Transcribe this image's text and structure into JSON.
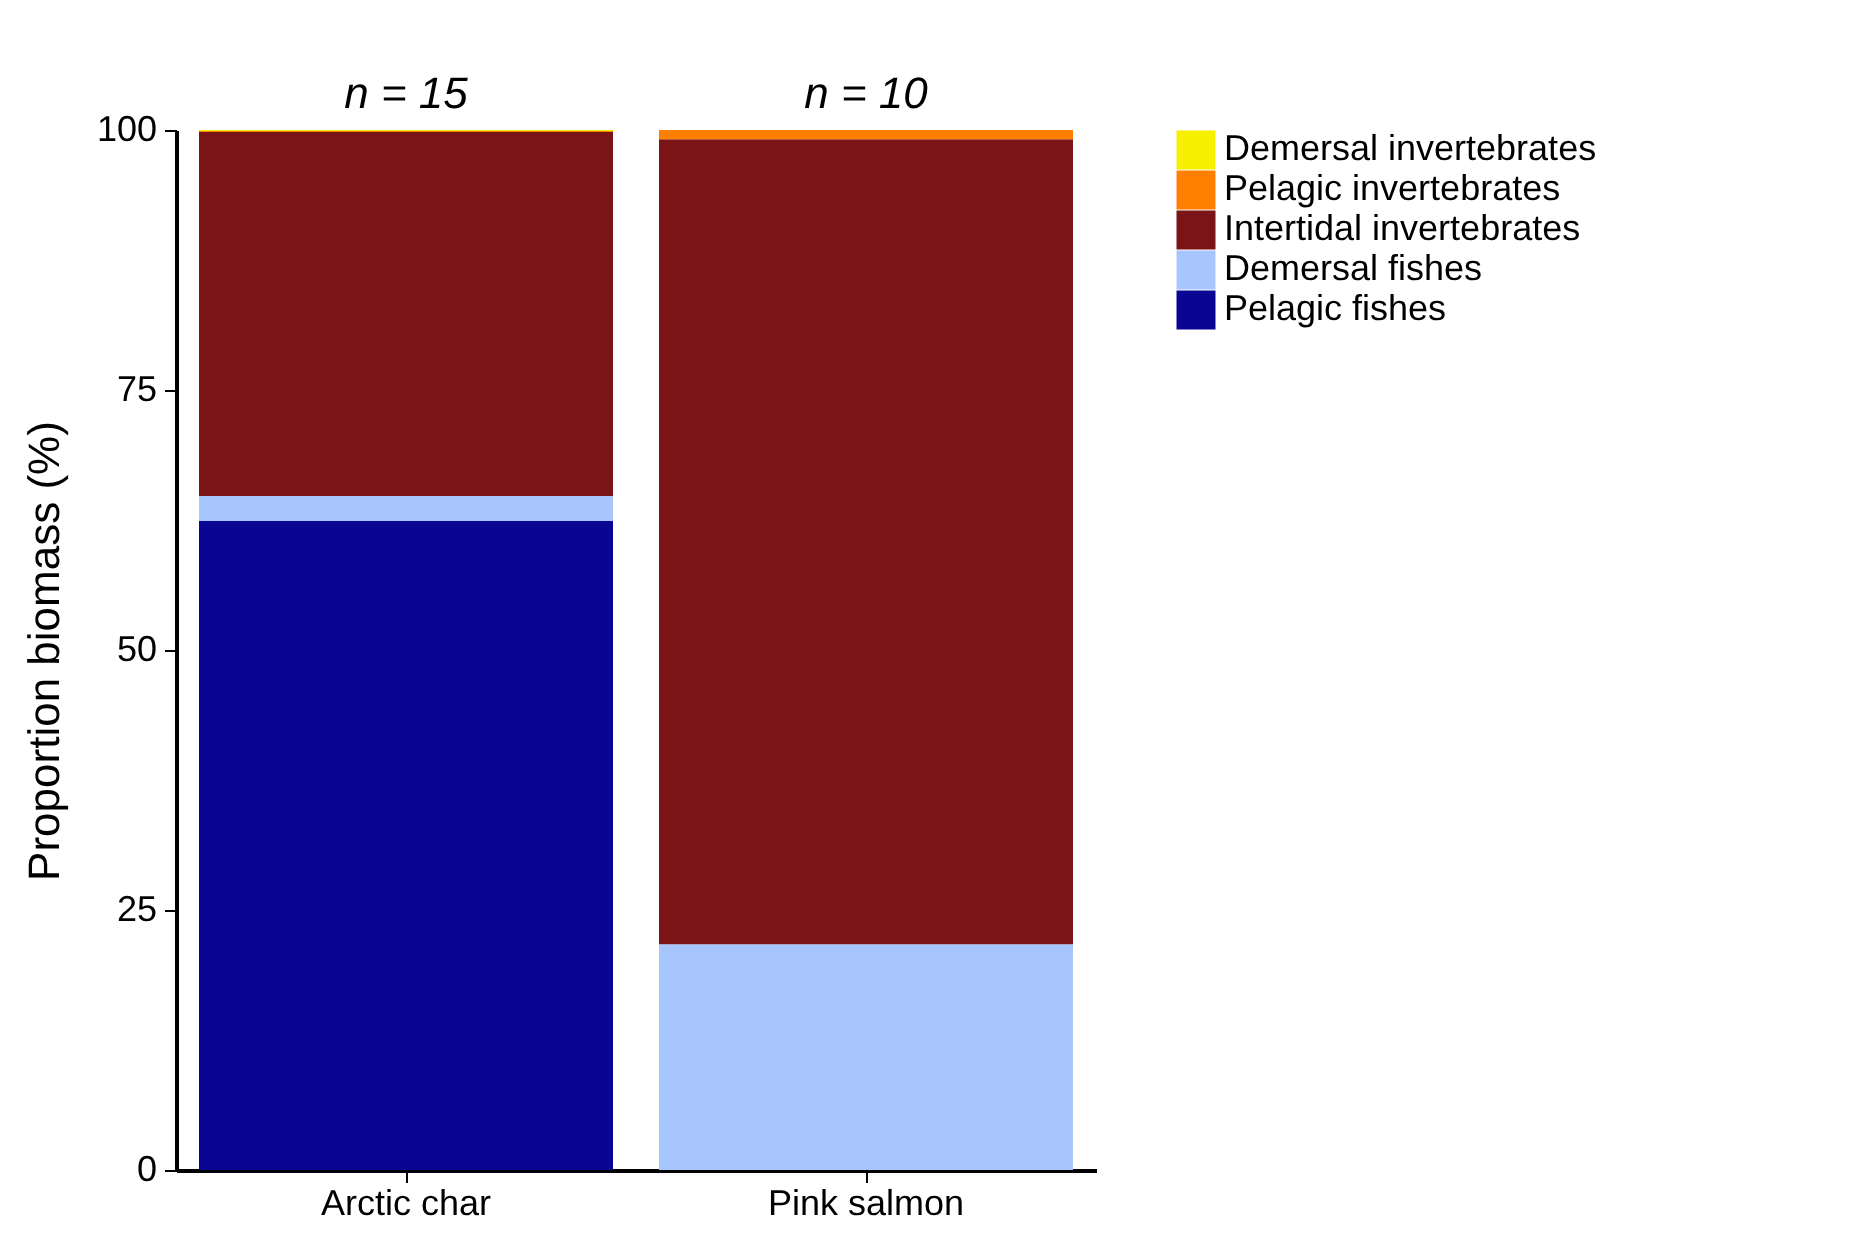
{
  "chart_data": {
    "type": "bar",
    "stacked": true,
    "ylabel": "Proportion biomass (%)",
    "categories": [
      "Arctic char",
      "Pink salmon"
    ],
    "series": [
      {
        "name": "Pelagic fishes",
        "color": "#0a0693",
        "values": [
          62.4,
          0
        ]
      },
      {
        "name": "Demersal fishes",
        "color": "#a6c6fd",
        "values": [
          2.4,
          21.7
        ]
      },
      {
        "name": "Intertidal invertebrates",
        "color": "#7a1416",
        "values": [
          35.0,
          77.4
        ]
      },
      {
        "name": "Pelagic invertebrates",
        "color": "#ff8000",
        "values": [
          0.1,
          0.9
        ]
      },
      {
        "name": "Demersal invertebrates",
        "color": "#f5f000",
        "values": [
          0.1,
          0
        ]
      }
    ],
    "ylim": [
      0,
      100
    ],
    "yticks": [
      0,
      25,
      50,
      75,
      100
    ],
    "grid": false,
    "legend": "right",
    "annotations": [
      {
        "text": "n = 15",
        "x": "Arctic char",
        "y": 100
      },
      {
        "text": "n = 10",
        "x": "Pink salmon",
        "y": 100
      }
    ]
  }
}
